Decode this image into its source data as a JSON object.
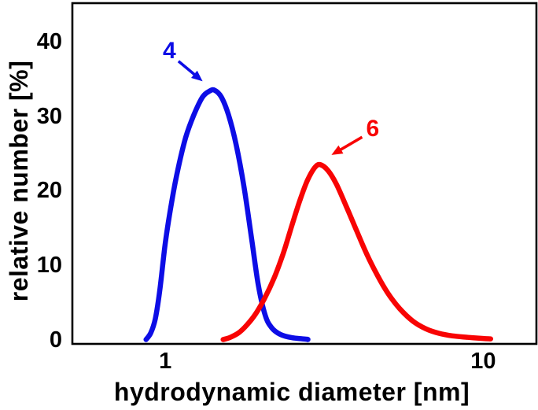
{
  "chart_data": {
    "type": "line",
    "title": "",
    "xlabel": "hydrodynamic diameter [nm]",
    "ylabel": "relative number [%]",
    "x_scale": "log10",
    "xlim": [
      0.51,
      14.7
    ],
    "ylim": [
      0,
      45.2
    ],
    "grid": false,
    "legend": "none",
    "frame": "full-box",
    "axis_color": "#000000",
    "x_ticks": [
      {
        "value": 1,
        "label": "1"
      },
      {
        "value": 10,
        "label": "10"
      }
    ],
    "y_ticks": [
      {
        "value": 0,
        "label": "0"
      },
      {
        "value": 10,
        "label": "10"
      },
      {
        "value": 20,
        "label": "20"
      },
      {
        "value": 30,
        "label": "30"
      },
      {
        "value": 40,
        "label": "40"
      }
    ],
    "series": [
      {
        "name": "4",
        "color": "#0d0de6",
        "peak": {
          "x_nm": 1.43,
          "y_pct": 33.5
        },
        "points": [
          [
            0.87,
            0
          ],
          [
            0.9,
            0.9
          ],
          [
            0.93,
            2.8
          ],
          [
            0.96,
            6.5
          ],
          [
            1.0,
            13.0
          ],
          [
            1.05,
            18.8
          ],
          [
            1.1,
            23.2
          ],
          [
            1.16,
            27.2
          ],
          [
            1.23,
            30.2
          ],
          [
            1.31,
            32.6
          ],
          [
            1.38,
            33.4
          ],
          [
            1.43,
            33.5
          ],
          [
            1.5,
            32.6
          ],
          [
            1.58,
            30.2
          ],
          [
            1.67,
            26.2
          ],
          [
            1.77,
            20.4
          ],
          [
            1.87,
            13.4
          ],
          [
            1.96,
            7.4
          ],
          [
            2.06,
            3.3
          ],
          [
            2.16,
            1.6
          ],
          [
            2.3,
            0.7
          ],
          [
            2.5,
            0.25
          ],
          [
            2.78,
            0.05
          ],
          [
            2.8,
            0
          ]
        ]
      },
      {
        "name": "6",
        "color": "#f80404",
        "peak": {
          "x_nm": 3.07,
          "y_pct": 23.5
        },
        "points": [
          [
            1.52,
            0
          ],
          [
            1.6,
            0.3
          ],
          [
            1.7,
            0.9
          ],
          [
            1.8,
            1.9
          ],
          [
            1.92,
            3.4
          ],
          [
            2.05,
            5.5
          ],
          [
            2.2,
            8.3
          ],
          [
            2.35,
            11.6
          ],
          [
            2.5,
            15.3
          ],
          [
            2.65,
            18.7
          ],
          [
            2.8,
            21.4
          ],
          [
            2.95,
            23.1
          ],
          [
            3.07,
            23.5
          ],
          [
            3.25,
            22.7
          ],
          [
            3.45,
            20.9
          ],
          [
            3.7,
            18.0
          ],
          [
            4.0,
            14.6
          ],
          [
            4.3,
            11.5
          ],
          [
            4.65,
            8.6
          ],
          [
            5.0,
            6.3
          ],
          [
            5.45,
            4.2
          ],
          [
            6.0,
            2.5
          ],
          [
            6.6,
            1.45
          ],
          [
            7.25,
            0.85
          ],
          [
            8.0,
            0.5
          ],
          [
            8.95,
            0.3
          ],
          [
            10.0,
            0.15
          ],
          [
            10.55,
            0.1
          ]
        ]
      }
    ],
    "annotations": [
      {
        "text": "4",
        "color": "#0d0de6",
        "text_at": {
          "x": 1.03,
          "y": 38.7
        },
        "arrow_from": {
          "x": 1.1,
          "y": 37.4
        },
        "arrow_to": {
          "x": 1.31,
          "y": 34.7
        }
      },
      {
        "text": "6",
        "color": "#f80404",
        "text_at": {
          "x": 4.49,
          "y": 28.3
        },
        "arrow_from": {
          "x": 4.16,
          "y": 27.2
        },
        "arrow_to": {
          "x": 3.33,
          "y": 24.8
        }
      }
    ]
  }
}
